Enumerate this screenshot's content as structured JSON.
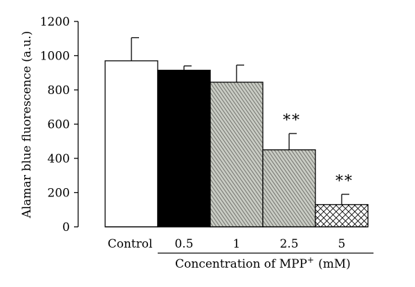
{
  "chart_data": {
    "type": "bar",
    "categories": [
      "Control",
      "0.5",
      "1",
      "2.5",
      "5"
    ],
    "values": [
      970,
      915,
      845,
      450,
      130
    ],
    "error_plus": [
      135,
      25,
      100,
      95,
      60
    ],
    "annotations": [
      "",
      "",
      "",
      "**",
      "**"
    ],
    "fills": [
      "white",
      "black",
      "diagonal-hatch",
      "diagonal-hatch",
      "crosshatch"
    ],
    "title": "",
    "ylabel": "Alamar blue fluorescence (a.u.)",
    "xlabel_main": "Concentration of MPP",
    "xlabel_sup": "+",
    "xlabel_unit": "(mM)",
    "ylim": [
      0,
      1200
    ],
    "yticks": [
      0,
      200,
      400,
      600,
      800,
      1000,
      1200
    ],
    "grid": false,
    "legend": "none"
  }
}
